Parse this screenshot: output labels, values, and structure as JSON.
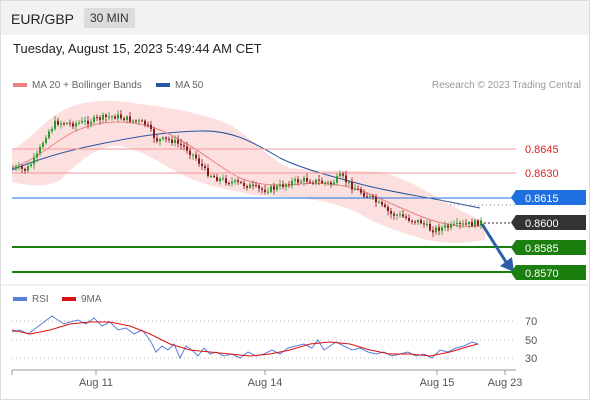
{
  "header": {
    "symbol": "EUR/GBP",
    "timeframe": "30 MIN"
  },
  "datetime": "Tuesday, August 15, 2023 5:49:44 AM CET",
  "legend": {
    "ma20": {
      "label": "MA 20 + Bollinger Bands",
      "color": "#f08080"
    },
    "ma50": {
      "label": "MA 50",
      "color": "#2a55a0"
    }
  },
  "credit": "Research © 2023 Trading Central",
  "levels": [
    {
      "value": "0.8645",
      "kind": "resistance-light"
    },
    {
      "value": "0.8630",
      "kind": "resistance-light"
    },
    {
      "value": "0.8615",
      "kind": "pivot"
    },
    {
      "value": "0.8600",
      "kind": "last"
    },
    {
      "value": "0.8585",
      "kind": "support"
    },
    {
      "value": "0.8570",
      "kind": "support"
    }
  ],
  "rsi_legend": {
    "rsi": {
      "label": "RSI",
      "color": "#5b7fd6"
    },
    "ma": {
      "label": "9MA",
      "color": "#dd1111"
    }
  },
  "rsi_levels": [
    "70",
    "50",
    "30"
  ],
  "xaxis": [
    "Aug 11",
    "Aug 14",
    "Aug 15",
    "Aug 23"
  ],
  "colors": {
    "up": "#2e9a2e",
    "down": "#8b1a1a",
    "support": "#1a7f0e",
    "pivot": "#1f6fe0",
    "last": "#333333",
    "arrow": "#2e5ea8"
  }
}
